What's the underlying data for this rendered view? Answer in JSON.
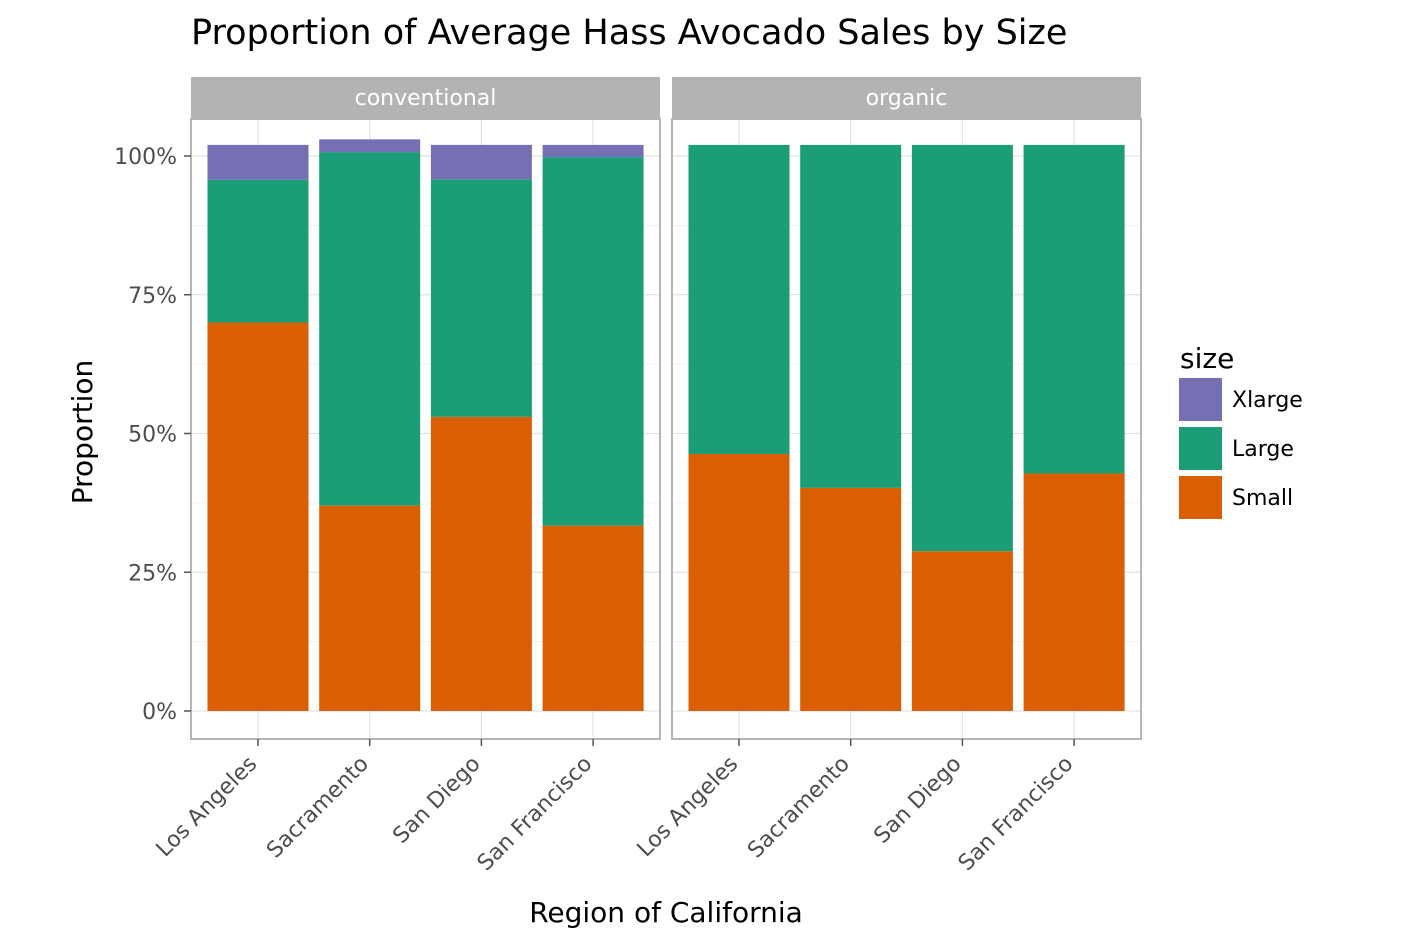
{
  "chart_data": {
    "type": "bar",
    "stacked": true,
    "proportional": true,
    "title": "Proportion of Average Hass Avocado Sales by Size",
    "xlabel": "Region of California",
    "ylabel": "Proportion",
    "ylim": [
      0,
      1
    ],
    "y_ticks": [
      {
        "value": 0,
        "label": "0%"
      },
      {
        "value": 0.25,
        "label": "25%"
      },
      {
        "value": 0.5,
        "label": "50%"
      },
      {
        "value": 0.75,
        "label": "75%"
      },
      {
        "value": 1.0,
        "label": "100%"
      }
    ],
    "categories": [
      "Los Angeles",
      "Sacramento",
      "San Diego",
      "San Francisco"
    ],
    "facets": [
      {
        "name": "conventional",
        "series": [
          {
            "name": "Small",
            "values": [
              0.7,
              0.37,
              0.53,
              0.334
            ]
          },
          {
            "name": "Large",
            "values": [
              0.257,
              0.637,
              0.428,
              0.664
            ]
          },
          {
            "name": "Xlarge",
            "values": [
              0.063,
              0.023,
              0.062,
              0.022
            ]
          }
        ]
      },
      {
        "name": "organic",
        "series": [
          {
            "name": "Small",
            "values": [
              0.463,
              0.402,
              0.288,
              0.428
            ]
          },
          {
            "name": "Large",
            "values": [
              0.557,
              0.618,
              0.732,
              0.592
            ]
          },
          {
            "name": "Xlarge",
            "values": [
              0,
              0,
              0,
              0
            ]
          }
        ]
      }
    ],
    "legend": {
      "title": "size",
      "placement": "right",
      "entries": [
        "Xlarge",
        "Large",
        "Small"
      ]
    },
    "colors": {
      "Small": "#d95f02",
      "Large": "#1b9e77",
      "Xlarge": "#7570b3"
    },
    "strip_color": "#b3b3b3",
    "grid": true
  }
}
